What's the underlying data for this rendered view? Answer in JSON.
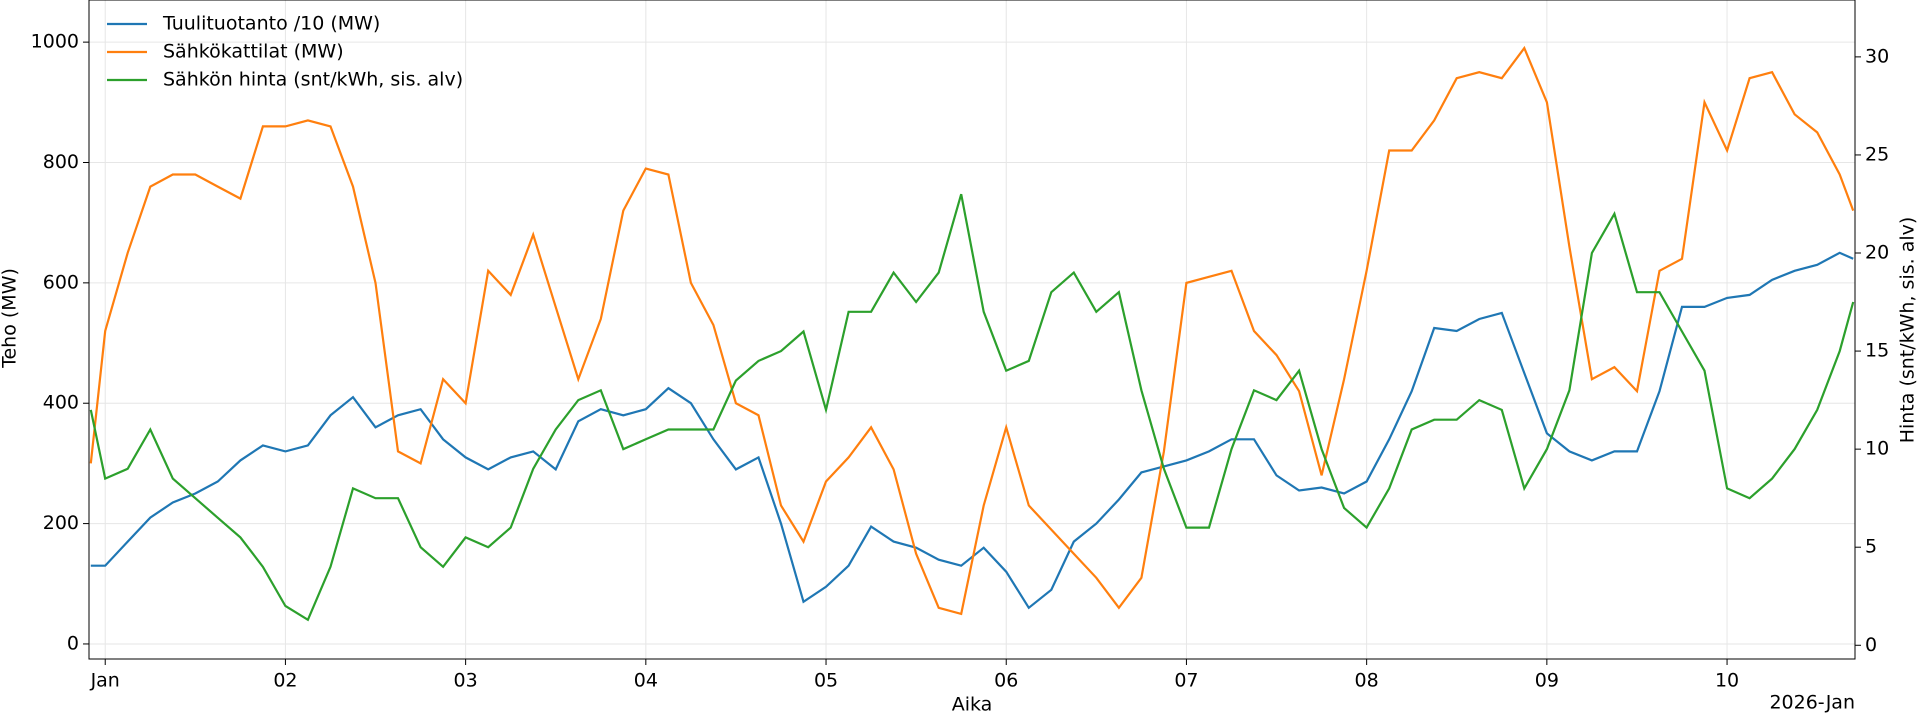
{
  "chart_data": {
    "type": "line",
    "x_label": "Aika",
    "y_label": "Teho (MW)",
    "y2_label": "Hinta (snt/kWh, sis. alv)",
    "x_offset_label": "2026-Jan",
    "legend": "upper left",
    "grid": true,
    "xlim": [
      0.91,
      10.71
    ],
    "xticks": [
      {
        "value": 1,
        "label": "Jan"
      },
      {
        "value": 2,
        "label": "02"
      },
      {
        "value": 3,
        "label": "03"
      },
      {
        "value": 4,
        "label": "04"
      },
      {
        "value": 5,
        "label": "05"
      },
      {
        "value": 6,
        "label": "06"
      },
      {
        "value": 7,
        "label": "07"
      },
      {
        "value": 8,
        "label": "08"
      },
      {
        "value": 9,
        "label": "09"
      },
      {
        "value": 10,
        "label": "10"
      }
    ],
    "ylim": [
      -25,
      1070
    ],
    "yticks": [
      0,
      200,
      400,
      600,
      800,
      1000
    ],
    "y2lim": [
      -0.7,
      32.9
    ],
    "y2ticks": [
      0,
      5,
      10,
      15,
      20,
      25,
      30
    ],
    "x": [
      0.92,
      1.0,
      1.125,
      1.25,
      1.375,
      1.5,
      1.625,
      1.75,
      1.875,
      2.0,
      2.125,
      2.25,
      2.375,
      2.5,
      2.625,
      2.75,
      2.875,
      3.0,
      3.125,
      3.25,
      3.375,
      3.5,
      3.625,
      3.75,
      3.875,
      4.0,
      4.125,
      4.25,
      4.375,
      4.5,
      4.625,
      4.75,
      4.875,
      5.0,
      5.125,
      5.25,
      5.375,
      5.5,
      5.625,
      5.75,
      5.875,
      6.0,
      6.125,
      6.25,
      6.375,
      6.5,
      6.625,
      6.75,
      6.875,
      7.0,
      7.125,
      7.25,
      7.375,
      7.5,
      7.625,
      7.75,
      7.875,
      8.0,
      8.125,
      8.25,
      8.375,
      8.5,
      8.625,
      8.75,
      8.875,
      9.0,
      9.125,
      9.25,
      9.375,
      9.5,
      9.625,
      9.75,
      9.875,
      10.0,
      10.125,
      10.25,
      10.375,
      10.5,
      10.625,
      10.7
    ],
    "series": [
      {
        "name": "Tuulituotanto /10 (MW)",
        "color": "#1f77b4",
        "values": [
          130,
          130,
          170,
          210,
          235,
          250,
          270,
          305,
          330,
          320,
          330,
          380,
          410,
          360,
          380,
          390,
          340,
          310,
          290,
          310,
          320,
          290,
          370,
          390,
          380,
          390,
          425,
          400,
          340,
          290,
          310,
          200,
          70,
          95,
          130,
          195,
          170,
          160,
          140,
          130,
          160,
          120,
          60,
          90,
          170,
          200,
          240,
          285,
          295,
          305,
          320,
          340,
          340,
          280,
          255,
          260,
          250,
          270,
          340,
          420,
          525,
          520,
          540,
          550,
          450,
          350,
          320,
          305,
          320,
          320,
          420,
          560,
          560,
          575,
          580,
          605,
          620,
          630,
          650,
          640
        ]
      },
      {
        "name": "Sähkökattilat (MW)",
        "color": "#ff7f0e",
        "values": [
          300,
          520,
          650,
          760,
          780,
          780,
          760,
          740,
          860,
          860,
          870,
          860,
          760,
          600,
          320,
          300,
          440,
          400,
          620,
          580,
          680,
          560,
          440,
          540,
          720,
          790,
          780,
          600,
          530,
          400,
          380,
          230,
          170,
          270,
          310,
          360,
          290,
          150,
          60,
          50,
          230,
          360,
          230,
          190,
          150,
          110,
          60,
          110,
          320,
          600,
          610,
          620,
          520,
          480,
          420,
          280,
          440,
          620,
          820,
          820,
          870,
          940,
          950,
          940,
          990,
          900,
          660,
          440,
          460,
          420,
          620,
          640,
          900,
          820,
          940,
          950,
          880,
          850,
          780,
          720
        ]
      },
      {
        "name": "Sähkön hinta (snt/kWh, sis. alv)",
        "color": "#2ca02c",
        "axis": "y2",
        "values": [
          12,
          8.5,
          9,
          11,
          8.5,
          7.5,
          6.5,
          5.5,
          4,
          2,
          1.3,
          4,
          8,
          7.5,
          7.5,
          5,
          4,
          5.5,
          5,
          6,
          9,
          11,
          12.5,
          13,
          10,
          10.5,
          11,
          11,
          11,
          13.5,
          14.5,
          15,
          16,
          12,
          17,
          17,
          19,
          17.5,
          19,
          23,
          17,
          14,
          14.5,
          18,
          19,
          17,
          18,
          13,
          9,
          6,
          6,
          10,
          13,
          12.5,
          14,
          10,
          7,
          6,
          8,
          11,
          11.5,
          11.5,
          12.5,
          12,
          8,
          10,
          13,
          20,
          22,
          18,
          18,
          16,
          14,
          8,
          7.5,
          8.5,
          10,
          12,
          15,
          17.5
        ]
      }
    ]
  }
}
